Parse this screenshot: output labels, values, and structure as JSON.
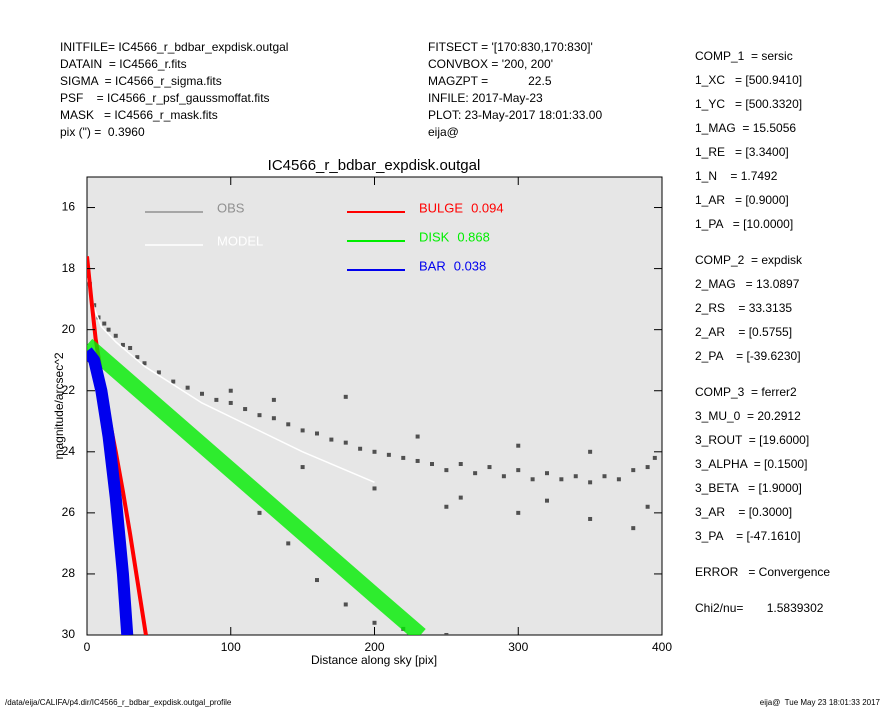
{
  "header": {
    "left": [
      "INITFILE= IC4566_r_bdbar_expdisk.outgal",
      "DATAIN  = IC4566_r.fits",
      "SIGMA  = IC4566_r_sigma.fits",
      "PSF    = IC4566_r_psf_gaussmoffat.fits",
      "MASK   = IC4566_r_mask.fits",
      "pix (\") =  0.3960"
    ],
    "middle": [
      "FITSECT = '[170:830,170:830]'",
      "CONVBOX = '200, 200'",
      "MAGZPT =            22.5",
      "INFILE: 2017-May-23",
      "PLOT: 23-May-2017 18:01:33.00",
      "eija@"
    ]
  },
  "params": [
    [
      "COMP_1  = sersic",
      "1_XC   = [500.9410]",
      "1_YC   = [500.3320]",
      "1_MAG  = 15.5056",
      "1_RE   = [3.3400]",
      "1_N    = 1.7492",
      "1_AR   = [0.9000]",
      "1_PA   = [10.0000]"
    ],
    [
      "COMP_2  = expdisk",
      "2_MAG   = 13.0897",
      "2_RS    = 33.3135",
      "2_AR    = [0.5755]",
      "2_PA    = [-39.6230]"
    ],
    [
      "COMP_3  = ferrer2",
      "3_MU_0  = 20.2912",
      "3_ROUT  = [19.6000]",
      "3_ALPHA  = [0.1500]",
      "3_BETA   = [1.9000]",
      "3_AR    = [0.3000]",
      "3_PA    = [-47.1610]"
    ],
    [
      "ERROR   = Convergence"
    ],
    [
      "Chi2/nu=       1.5839302"
    ]
  ],
  "footer": {
    "left": "/data/eija/CALIFA/p4.dir/IC4566_r_bdbar_expdisk.outgal_profile",
    "right": "eija@  Tue May 23 18:01:33 2017"
  },
  "chart_data": {
    "type": "scatter",
    "title": "IC4566_r_bdbar_expdisk.outgal",
    "x_label": "Distance along sky [pix]",
    "y_label": "magnitude/arcsec^2",
    "xlim": [
      0,
      400
    ],
    "xticks": [
      0,
      100,
      200,
      300,
      400
    ],
    "ylim": [
      30,
      15
    ],
    "yticks": [
      16,
      18,
      20,
      22,
      24,
      26,
      28,
      30
    ],
    "series": [
      {
        "name": "OBS",
        "type": "scatter",
        "color": "#505050",
        "legend_color": "#909090",
        "x": [
          2,
          5,
          8,
          12,
          15,
          20,
          25,
          30,
          35,
          40,
          50,
          60,
          70,
          80,
          90,
          100,
          110,
          120,
          130,
          140,
          150,
          160,
          170,
          180,
          190,
          200,
          210,
          220,
          230,
          240,
          250,
          260,
          270,
          280,
          290,
          300,
          310,
          320,
          330,
          340,
          350,
          360,
          370,
          380,
          390,
          395,
          150,
          200,
          250,
          300,
          350,
          380,
          120,
          140,
          160,
          180,
          200,
          220,
          250,
          100,
          130,
          180,
          300,
          350,
          230,
          260,
          320,
          390
        ],
        "values": [
          18.5,
          19.2,
          19.6,
          19.8,
          20,
          20.2,
          20.5,
          20.6,
          20.9,
          21.1,
          21.4,
          21.7,
          21.9,
          22.1,
          22.3,
          22.4,
          22.6,
          22.8,
          22.9,
          23.1,
          23.3,
          23.4,
          23.6,
          23.7,
          23.9,
          24,
          24.1,
          24.2,
          24.3,
          24.4,
          24.6,
          24.4,
          24.7,
          24.5,
          24.8,
          24.6,
          24.9,
          24.7,
          24.9,
          24.8,
          25,
          24.8,
          24.9,
          24.6,
          24.5,
          24.2,
          24.5,
          25.2,
          25.8,
          26,
          26.2,
          26.5,
          26,
          27,
          28.2,
          29,
          29.6,
          29.8,
          30,
          22,
          22.3,
          22.2,
          23.8,
          24,
          23.5,
          25.5,
          25.6,
          25.8
        ]
      },
      {
        "name": "MODEL",
        "type": "line",
        "color": "#ffffff",
        "x": [
          0,
          5,
          10,
          20,
          40,
          80,
          150,
          200
        ],
        "values": [
          18.3,
          19.3,
          19.9,
          20.4,
          21.2,
          22.4,
          24,
          25
        ]
      },
      {
        "name": "BULGE",
        "fraction": 0.094,
        "type": "line",
        "color": "#ff0000",
        "x": [
          0,
          3,
          6,
          10,
          15,
          20,
          25,
          30,
          35,
          41
        ],
        "values": [
          17.6,
          19,
          20.3,
          21.5,
          22.8,
          24,
          25.3,
          26.7,
          28.2,
          30
        ]
      },
      {
        "name": "DISK",
        "fraction": 0.868,
        "type": "line",
        "color": "#00ee00",
        "x": [
          0,
          50,
          100,
          150,
          200,
          232
        ],
        "values": [
          20.5,
          22.55,
          24.6,
          26.65,
          28.7,
          30
        ]
      },
      {
        "name": "BAR",
        "fraction": 0.038,
        "type": "line",
        "color": "#0000ee",
        "x": [
          0,
          5,
          10,
          15,
          20,
          25,
          28
        ],
        "values": [
          20.7,
          21,
          22,
          23.5,
          25.5,
          28,
          30
        ]
      }
    ]
  }
}
